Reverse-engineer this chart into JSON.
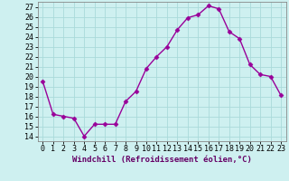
{
  "x": [
    0,
    1,
    2,
    3,
    4,
    5,
    6,
    7,
    8,
    9,
    10,
    11,
    12,
    13,
    14,
    15,
    16,
    17,
    18,
    19,
    20,
    21,
    22,
    23
  ],
  "y": [
    19.5,
    16.2,
    16.0,
    15.8,
    14.0,
    15.2,
    15.2,
    15.2,
    17.5,
    18.5,
    20.8,
    22.0,
    23.0,
    24.7,
    25.9,
    26.2,
    27.1,
    26.8,
    24.5,
    23.8,
    21.2,
    20.2,
    20.0,
    18.1
  ],
  "line_color": "#990099",
  "marker": "D",
  "markersize": 2.5,
  "linewidth": 1.0,
  "bg_color": "#cef0f0",
  "grid_color": "#aadada",
  "xlabel": "Windchill (Refroidissement éolien,°C)",
  "yticks": [
    14,
    15,
    16,
    17,
    18,
    19,
    20,
    21,
    22,
    23,
    24,
    25,
    26,
    27
  ],
  "ylim": [
    13.5,
    27.5
  ],
  "xlim": [
    -0.5,
    23.5
  ],
  "xtick_labels": [
    "0",
    "1",
    "2",
    "3",
    "4",
    "5",
    "6",
    "7",
    "8",
    "9",
    "10",
    "11",
    "12",
    "13",
    "14",
    "15",
    "16",
    "17",
    "18",
    "19",
    "20",
    "21",
    "22",
    "23"
  ],
  "label_fontsize": 6.5,
  "tick_fontsize": 6.0
}
